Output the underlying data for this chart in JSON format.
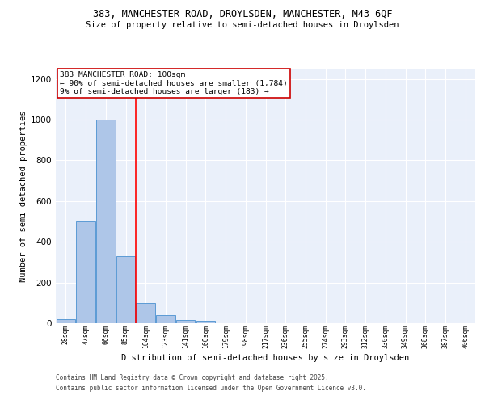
{
  "title_line1": "383, MANCHESTER ROAD, DROYLSDEN, MANCHESTER, M43 6QF",
  "title_line2": "Size of property relative to semi-detached houses in Droylsden",
  "xlabel": "Distribution of semi-detached houses by size in Droylsden",
  "ylabel": "Number of semi-detached properties",
  "categories": [
    "28sqm",
    "47sqm",
    "66sqm",
    "85sqm",
    "104sqm",
    "123sqm",
    "141sqm",
    "160sqm",
    "179sqm",
    "198sqm",
    "217sqm",
    "236sqm",
    "255sqm",
    "274sqm",
    "293sqm",
    "312sqm",
    "330sqm",
    "349sqm",
    "368sqm",
    "387sqm",
    "406sqm"
  ],
  "values": [
    20,
    500,
    1000,
    330,
    100,
    40,
    17,
    10,
    0,
    0,
    0,
    0,
    0,
    0,
    0,
    0,
    0,
    0,
    0,
    0,
    0
  ],
  "bar_color": "#aec6e8",
  "bar_edge_color": "#5b9bd5",
  "red_line_x": 3.5,
  "annotation_text_line1": "383 MANCHESTER ROAD: 100sqm",
  "annotation_text_line2": "← 90% of semi-detached houses are smaller (1,784)",
  "annotation_text_line3": "9% of semi-detached houses are larger (183) →",
  "ylim": [
    0,
    1250
  ],
  "yticks": [
    0,
    200,
    400,
    600,
    800,
    1000,
    1200
  ],
  "footnote1": "Contains HM Land Registry data © Crown copyright and database right 2025.",
  "footnote2": "Contains public sector information licensed under the Open Government Licence v3.0.",
  "background_color": "#eaf0fa",
  "grid_color": "#ffffff",
  "annotation_box_color": "#ffffff",
  "annotation_box_edge_color": "#cc0000"
}
